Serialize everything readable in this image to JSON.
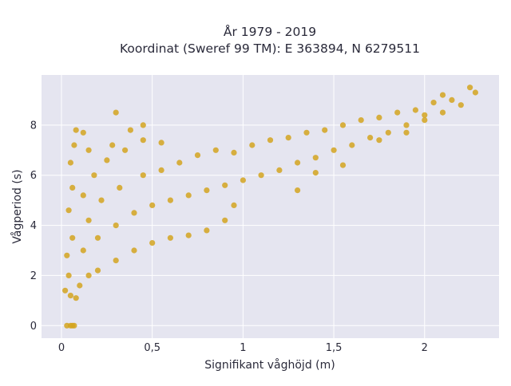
{
  "chart_data": {
    "type": "scatter",
    "title_line1": "År 1979 - 2019",
    "title_line2": "Koordinat (Sweref 99 TM): E 363894, N 6279511",
    "xlabel": "Signifikant våghöjd (m)",
    "ylabel": "Vågperiod (s)",
    "xlim": [
      -0.11,
      2.41
    ],
    "ylim": [
      -0.5,
      10.0
    ],
    "x_ticks": [
      0,
      0.5,
      1,
      1.5,
      2
    ],
    "x_tick_labels": [
      "0",
      "0,5",
      "1",
      "1,5",
      "2"
    ],
    "y_ticks": [
      0,
      2,
      4,
      6,
      8
    ],
    "y_tick_labels": [
      "0",
      "2",
      "4",
      "6",
      "8"
    ],
    "grid": true,
    "legend": "none",
    "colors": {
      "marker": "#D4A420",
      "plot_background": "#E5E5F0",
      "grid": "#FFFFFF",
      "text": "#2A2A3A"
    },
    "series": [
      {
        "values": [
          {
            "x": 0.03,
            "y": 0.0
          },
          {
            "x": 0.05,
            "y": 0.0
          },
          {
            "x": 0.06,
            "y": 0.0
          },
          {
            "x": 0.07,
            "y": 0.0
          },
          {
            "x": 0.02,
            "y": 1.4
          },
          {
            "x": 0.05,
            "y": 1.2
          },
          {
            "x": 0.08,
            "y": 1.1
          },
          {
            "x": 0.04,
            "y": 2.0
          },
          {
            "x": 0.03,
            "y": 2.8
          },
          {
            "x": 0.06,
            "y": 3.5
          },
          {
            "x": 0.04,
            "y": 4.6
          },
          {
            "x": 0.06,
            "y": 5.5
          },
          {
            "x": 0.05,
            "y": 6.5
          },
          {
            "x": 0.07,
            "y": 7.2
          },
          {
            "x": 0.08,
            "y": 7.8
          },
          {
            "x": 0.12,
            "y": 7.7
          },
          {
            "x": 0.1,
            "y": 1.6
          },
          {
            "x": 0.15,
            "y": 2.0
          },
          {
            "x": 0.12,
            "y": 3.0
          },
          {
            "x": 0.15,
            "y": 4.2
          },
          {
            "x": 0.12,
            "y": 5.2
          },
          {
            "x": 0.18,
            "y": 6.0
          },
          {
            "x": 0.15,
            "y": 7.0
          },
          {
            "x": 0.2,
            "y": 2.2
          },
          {
            "x": 0.2,
            "y": 3.5
          },
          {
            "x": 0.22,
            "y": 5.0
          },
          {
            "x": 0.25,
            "y": 6.6
          },
          {
            "x": 0.28,
            "y": 7.2
          },
          {
            "x": 0.3,
            "y": 2.6
          },
          {
            "x": 0.3,
            "y": 4.0
          },
          {
            "x": 0.32,
            "y": 5.5
          },
          {
            "x": 0.35,
            "y": 7.0
          },
          {
            "x": 0.38,
            "y": 7.8
          },
          {
            "x": 0.3,
            "y": 8.5
          },
          {
            "x": 0.4,
            "y": 3.0
          },
          {
            "x": 0.4,
            "y": 4.5
          },
          {
            "x": 0.45,
            "y": 6.0
          },
          {
            "x": 0.45,
            "y": 7.4
          },
          {
            "x": 0.45,
            "y": 8.0
          },
          {
            "x": 0.5,
            "y": 3.3
          },
          {
            "x": 0.5,
            "y": 4.8
          },
          {
            "x": 0.55,
            "y": 6.2
          },
          {
            "x": 0.55,
            "y": 7.3
          },
          {
            "x": 0.6,
            "y": 3.5
          },
          {
            "x": 0.6,
            "y": 5.0
          },
          {
            "x": 0.65,
            "y": 6.5
          },
          {
            "x": 0.7,
            "y": 3.6
          },
          {
            "x": 0.7,
            "y": 5.2
          },
          {
            "x": 0.75,
            "y": 6.8
          },
          {
            "x": 0.8,
            "y": 3.8
          },
          {
            "x": 0.8,
            "y": 5.4
          },
          {
            "x": 0.85,
            "y": 7.0
          },
          {
            "x": 0.9,
            "y": 4.2
          },
          {
            "x": 0.9,
            "y": 5.6
          },
          {
            "x": 0.95,
            "y": 6.9
          },
          {
            "x": 0.95,
            "y": 4.8
          },
          {
            "x": 1.0,
            "y": 5.8
          },
          {
            "x": 1.05,
            "y": 7.2
          },
          {
            "x": 1.1,
            "y": 6.0
          },
          {
            "x": 1.15,
            "y": 7.4
          },
          {
            "x": 1.2,
            "y": 6.2
          },
          {
            "x": 1.25,
            "y": 7.5
          },
          {
            "x": 1.3,
            "y": 6.5
          },
          {
            "x": 1.35,
            "y": 7.7
          },
          {
            "x": 1.4,
            "y": 6.7
          },
          {
            "x": 1.45,
            "y": 7.8
          },
          {
            "x": 1.5,
            "y": 7.0
          },
          {
            "x": 1.55,
            "y": 8.0
          },
          {
            "x": 1.6,
            "y": 7.2
          },
          {
            "x": 1.65,
            "y": 8.2
          },
          {
            "x": 1.7,
            "y": 7.5
          },
          {
            "x": 1.75,
            "y": 8.3
          },
          {
            "x": 1.8,
            "y": 7.7
          },
          {
            "x": 1.85,
            "y": 8.5
          },
          {
            "x": 1.9,
            "y": 8.0
          },
          {
            "x": 1.95,
            "y": 8.6
          },
          {
            "x": 2.0,
            "y": 8.2
          },
          {
            "x": 2.05,
            "y": 8.9
          },
          {
            "x": 2.1,
            "y": 8.5
          },
          {
            "x": 2.15,
            "y": 9.0
          },
          {
            "x": 2.2,
            "y": 8.8
          },
          {
            "x": 2.25,
            "y": 9.5
          },
          {
            "x": 2.28,
            "y": 9.3
          },
          {
            "x": 1.3,
            "y": 5.4
          },
          {
            "x": 1.4,
            "y": 6.1
          },
          {
            "x": 1.55,
            "y": 6.4
          },
          {
            "x": 1.75,
            "y": 7.4
          },
          {
            "x": 1.9,
            "y": 7.7
          },
          {
            "x": 2.0,
            "y": 8.4
          },
          {
            "x": 2.1,
            "y": 9.2
          }
        ]
      }
    ]
  }
}
